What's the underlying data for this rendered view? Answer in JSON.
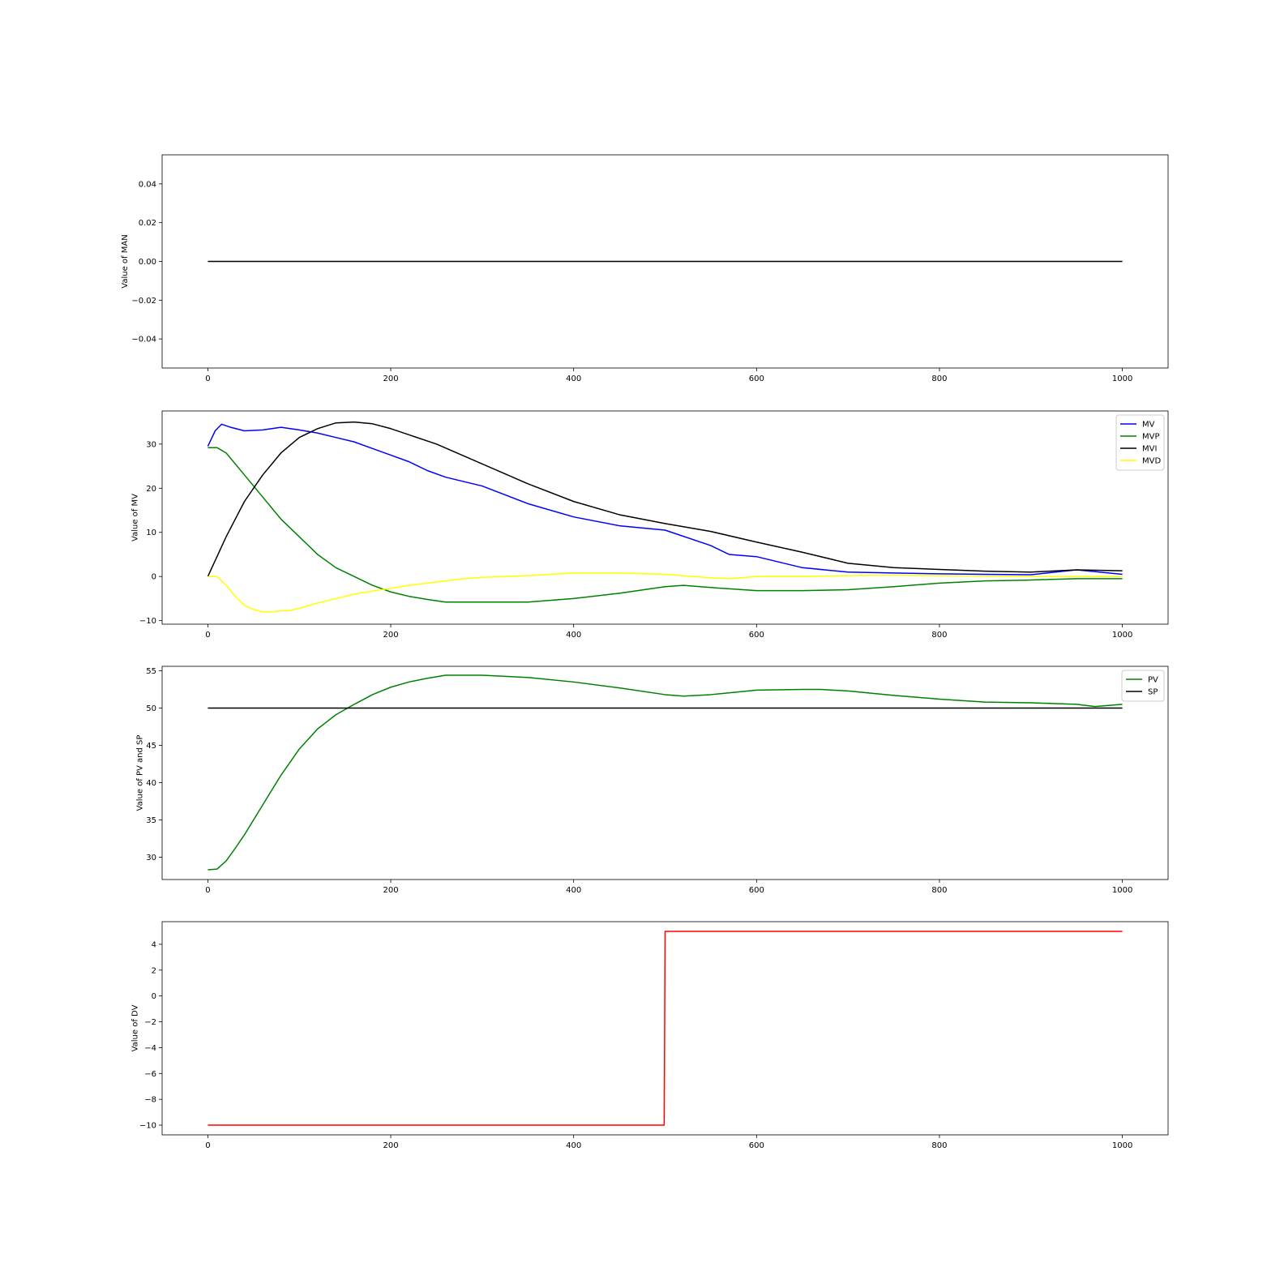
{
  "chart_data": [
    {
      "type": "line",
      "ylabel": "Value of MAN",
      "xlabel": "",
      "xlim": [
        -50,
        1050
      ],
      "ylim": [
        -0.055,
        0.055
      ],
      "xticks": [
        0,
        200,
        400,
        600,
        800,
        1000
      ],
      "yticks": [
        -0.04,
        -0.02,
        0.0,
        0.02,
        0.04
      ],
      "ytick_labels": [
        "−0.04",
        "−0.02",
        "0.00",
        "0.02",
        "0.04"
      ],
      "legend": null,
      "series": [
        {
          "color": "#000000",
          "x": [
            0,
            1000
          ],
          "y": [
            0,
            0
          ]
        }
      ]
    },
    {
      "type": "line",
      "ylabel": "Value of MV",
      "xlabel": "",
      "xlim": [
        -50,
        1050
      ],
      "ylim": [
        -10.8,
        37.5
      ],
      "xticks": [
        0,
        200,
        400,
        600,
        800,
        1000
      ],
      "yticks": [
        -10,
        0,
        10,
        20,
        30
      ],
      "ytick_labels": [
        "−10",
        "0",
        "10",
        "20",
        "30"
      ],
      "legend": "top-right",
      "series": [
        {
          "name": "MV",
          "color": "#0000ff",
          "x": [
            0,
            8,
            15,
            25,
            40,
            60,
            80,
            100,
            120,
            140,
            160,
            180,
            200,
            220,
            240,
            260,
            300,
            350,
            400,
            450,
            500,
            550,
            570,
            600,
            650,
            700,
            750,
            800,
            850,
            900,
            950,
            1000
          ],
          "y": [
            29.5,
            33,
            34.5,
            33.8,
            33,
            33.2,
            33.8,
            33.2,
            32.5,
            31.5,
            30.5,
            29,
            27.5,
            26,
            24,
            22.5,
            20.5,
            16.5,
            13.5,
            11.5,
            10.5,
            7,
            5,
            4.5,
            2,
            1,
            0.8,
            0.6,
            0.5,
            0.4,
            1.5,
            0.5
          ]
        },
        {
          "name": "MVP",
          "color": "#008000",
          "x": [
            0,
            10,
            20,
            40,
            60,
            80,
            100,
            120,
            140,
            160,
            180,
            200,
            220,
            240,
            260,
            300,
            350,
            400,
            450,
            500,
            520,
            550,
            600,
            650,
            700,
            750,
            800,
            850,
            900,
            950,
            1000
          ],
          "y": [
            29.2,
            29.2,
            28,
            23,
            18,
            13,
            9,
            5,
            2,
            0,
            -2,
            -3.5,
            -4.5,
            -5.2,
            -5.8,
            -5.8,
            -5.8,
            -5,
            -3.8,
            -2.3,
            -2,
            -2.5,
            -3.2,
            -3.2,
            -3,
            -2.3,
            -1.5,
            -1,
            -0.8,
            -0.5,
            -0.5
          ]
        },
        {
          "name": "MVI",
          "color": "#000000",
          "x": [
            0,
            20,
            40,
            60,
            80,
            100,
            120,
            140,
            160,
            180,
            200,
            250,
            300,
            350,
            400,
            450,
            500,
            550,
            600,
            650,
            700,
            750,
            800,
            850,
            900,
            950,
            1000
          ],
          "y": [
            0,
            9,
            17,
            23,
            28,
            31.5,
            33.5,
            34.8,
            35,
            34.6,
            33.5,
            30,
            25.5,
            21,
            17,
            14,
            12,
            10.2,
            7.8,
            5.5,
            3,
            2,
            1.6,
            1.2,
            1,
            1.5,
            1.3
          ]
        },
        {
          "name": "MVD",
          "color": "#ffff00",
          "x": [
            0,
            10,
            20,
            30,
            40,
            50,
            60,
            70,
            80,
            90,
            100,
            120,
            140,
            160,
            180,
            200,
            220,
            240,
            260,
            280,
            300,
            350,
            400,
            450,
            500,
            550,
            570,
            600,
            650,
            700,
            750,
            800,
            850,
            900,
            950,
            1000
          ],
          "y": [
            0,
            0,
            -2,
            -4.5,
            -6.5,
            -7.5,
            -8,
            -8,
            -7.8,
            -7.7,
            -7.2,
            -6,
            -5,
            -4,
            -3.3,
            -2.7,
            -2,
            -1.5,
            -1,
            -0.5,
            -0.2,
            0.2,
            0.8,
            0.8,
            0.5,
            -0.3,
            -0.5,
            0,
            0,
            0.2,
            0.3,
            0.2,
            0.1,
            0,
            0,
            0
          ]
        }
      ]
    },
    {
      "type": "line",
      "ylabel": "Value of PV and SP",
      "xlabel": "",
      "xlim": [
        -50,
        1050
      ],
      "ylim": [
        27,
        55.6
      ],
      "xticks": [
        0,
        200,
        400,
        600,
        800,
        1000
      ],
      "yticks": [
        30,
        35,
        40,
        45,
        50,
        55
      ],
      "ytick_labels": [
        "30",
        "35",
        "40",
        "45",
        "50",
        "55"
      ],
      "legend": "top-right",
      "series": [
        {
          "name": "PV",
          "color": "#008000",
          "x": [
            0,
            10,
            20,
            30,
            40,
            60,
            80,
            100,
            120,
            140,
            160,
            180,
            200,
            220,
            240,
            260,
            300,
            350,
            400,
            450,
            500,
            520,
            550,
            600,
            650,
            670,
            700,
            750,
            800,
            850,
            900,
            950,
            970,
            1000
          ],
          "y": [
            28.3,
            28.4,
            29.5,
            31.2,
            33,
            37,
            41,
            44.5,
            47.2,
            49.1,
            50.5,
            51.8,
            52.8,
            53.5,
            54,
            54.4,
            54.4,
            54.1,
            53.5,
            52.7,
            51.8,
            51.6,
            51.8,
            52.4,
            52.5,
            52.5,
            52.3,
            51.7,
            51.2,
            50.8,
            50.7,
            50.5,
            50.2,
            50.5
          ]
        },
        {
          "name": "SP",
          "color": "#000000",
          "x": [
            0,
            1000
          ],
          "y": [
            50,
            50
          ]
        }
      ]
    },
    {
      "type": "line",
      "ylabel": "Value of DV",
      "xlabel": "",
      "xlim": [
        -50,
        1050
      ],
      "ylim": [
        -10.75,
        5.75
      ],
      "xticks": [
        0,
        200,
        400,
        600,
        800,
        1000
      ],
      "yticks": [
        -10,
        -8,
        -6,
        -4,
        -2,
        0,
        2,
        4
      ],
      "ytick_labels": [
        "−10",
        "−8",
        "−6",
        "−4",
        "−2",
        "0",
        "2",
        "4"
      ],
      "legend": null,
      "series": [
        {
          "color": "#ff0000",
          "x": [
            0,
            499,
            500,
            1000
          ],
          "y": [
            -10,
            -10,
            5,
            5
          ]
        }
      ]
    }
  ]
}
